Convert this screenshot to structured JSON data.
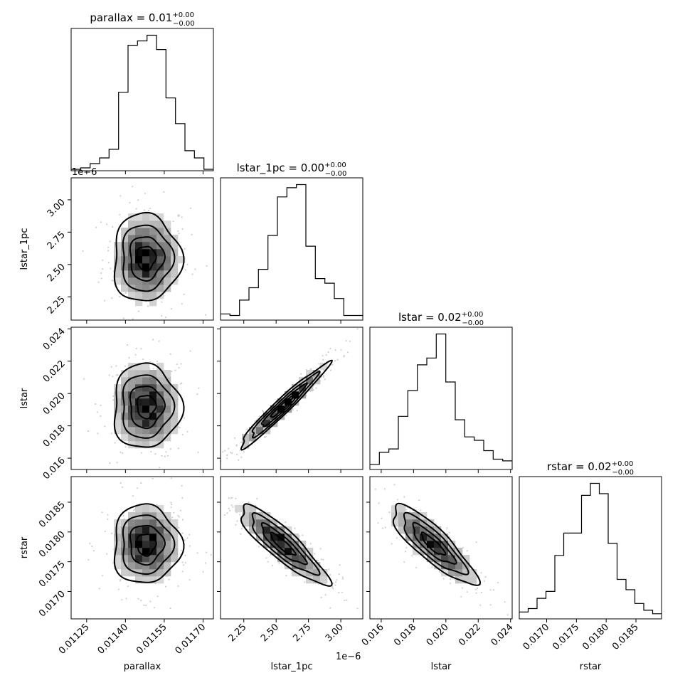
{
  "chart_data": {
    "type": "corner",
    "parameters": [
      "parallax",
      "lstar_1pc",
      "lstar",
      "rstar"
    ],
    "panel_titles": [
      {
        "param": "parallax",
        "text": "parallax = 0.01",
        "upper": "+0.00",
        "lower": "−0.00"
      },
      {
        "param": "lstar_1pc",
        "text": "lstar_1pc = 0.00",
        "upper": "+0.00",
        "lower": "−0.00"
      },
      {
        "param": "lstar",
        "text": "lstar = 0.02",
        "upper": "+0.00",
        "lower": "−0.00"
      },
      {
        "param": "rstar",
        "text": "rstar = 0.02",
        "upper": "+0.00",
        "lower": "−0.00"
      }
    ],
    "axis_ranges": {
      "parallax": [
        0.01119,
        0.01174
      ],
      "lstar_1pc": [
        2.07e-06,
        3.17e-06
      ],
      "lstar": [
        0.0153,
        0.0241
      ],
      "rstar": [
        0.01654,
        0.01893
      ]
    },
    "ticks": {
      "parallax": {
        "values": [
          0.01125,
          0.0114,
          0.01155,
          0.0117
        ],
        "labels": [
          "0.01125",
          "0.01140",
          "0.01155",
          "0.01170"
        ]
      },
      "lstar_1pc": {
        "values": [
          2.25,
          2.5,
          2.75,
          3.0
        ],
        "labels": [
          "2.25",
          "2.50",
          "2.75",
          "3.00"
        ],
        "offset": "1e−6"
      },
      "lstar": {
        "values": [
          0.016,
          0.018,
          0.02,
          0.022,
          0.024
        ],
        "labels": [
          "0.016",
          "0.018",
          "0.020",
          "0.022",
          "0.024"
        ]
      },
      "rstar": {
        "values": [
          0.017,
          0.0175,
          0.018,
          0.0185
        ],
        "labels": [
          "0.0170",
          "0.0175",
          "0.0180",
          "0.0185"
        ]
      }
    },
    "histograms": {
      "parallax": [
        1,
        2,
        5,
        9,
        15,
        55,
        88,
        91,
        95,
        85,
        51,
        33,
        14,
        9,
        1
      ],
      "lstar_1pc": [
        4,
        3,
        13,
        21,
        33,
        55,
        80,
        86,
        88,
        48,
        27,
        24,
        14,
        3,
        3
      ],
      "lstar": [
        3,
        10,
        12,
        31,
        46,
        61,
        65,
        79,
        51,
        29,
        19,
        17,
        11,
        6,
        5
      ],
      "rstar": [
        4,
        6,
        12,
        16,
        37,
        50,
        50,
        72,
        79,
        73,
        44,
        23,
        17,
        9,
        5,
        3
      ]
    },
    "legend": "none",
    "grid": false
  }
}
